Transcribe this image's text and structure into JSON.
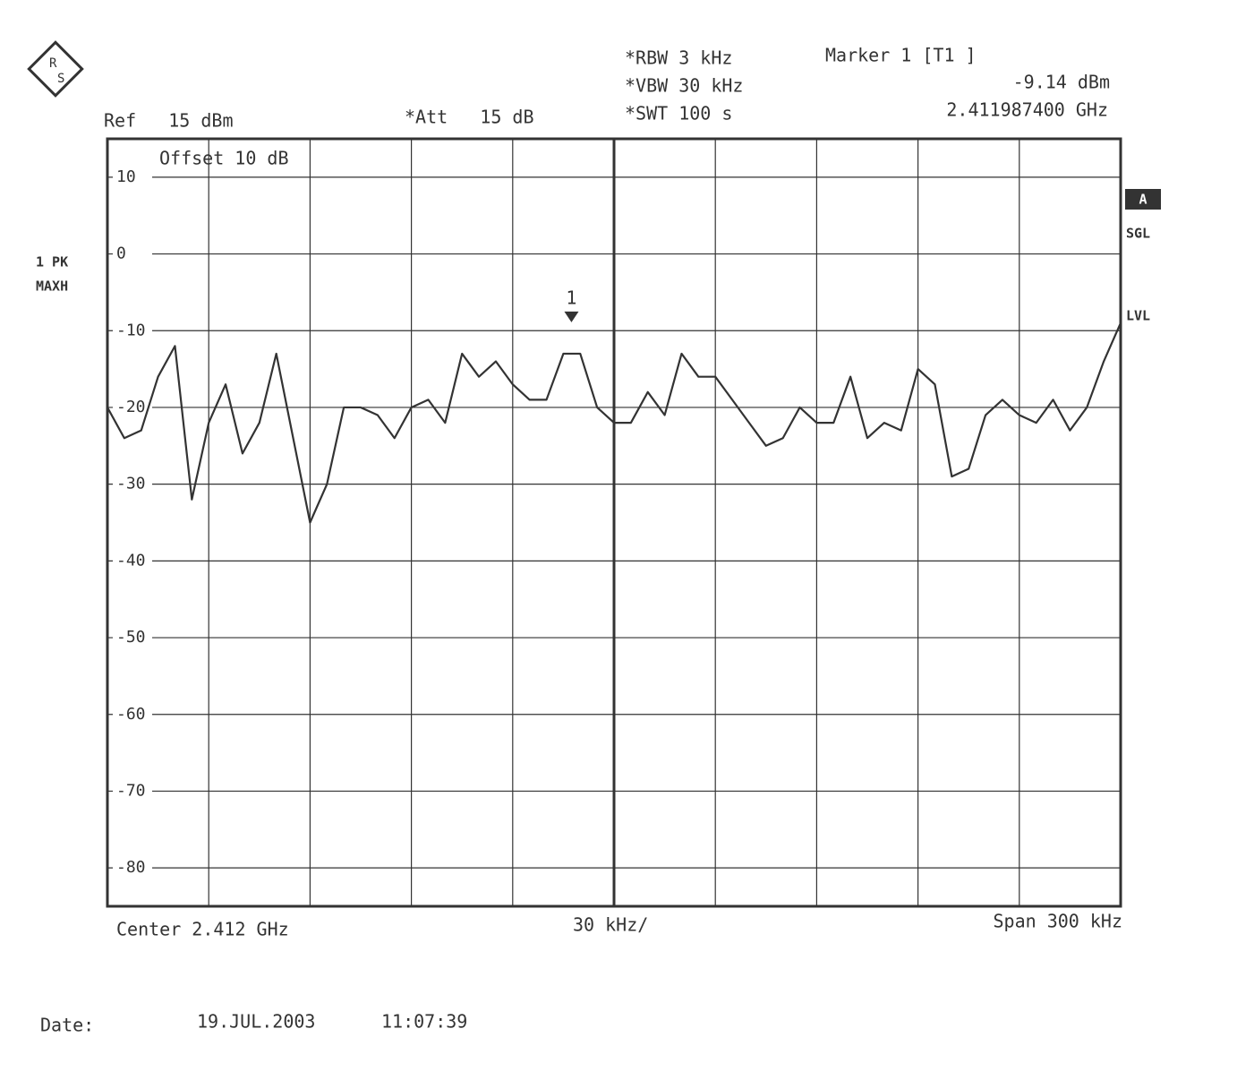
{
  "chart_data": {
    "type": "line",
    "logo": [
      "R",
      "S"
    ],
    "annotations": {
      "ref": "Ref   15 dBm",
      "att": "*Att   15 dB",
      "rbw": "*RBW 3 kHz",
      "vbw": "*VBW 30 kHz",
      "swt": "*SWT 100 s",
      "marker_title": "Marker 1 [T1 ]",
      "marker_level": "-9.14 dBm",
      "marker_freq": "2.411987400 GHz",
      "offset": "Offset   10 dB",
      "trace_mode_1": "1 PK",
      "trace_mode_2": "MAXH",
      "side_a": "A",
      "side_sgl": "SGL",
      "side_lvl": "LVL",
      "center": "Center 2.412 GHz",
      "per_div": "30 kHz/",
      "span": "Span 300 kHz",
      "date_label": "Date:",
      "date": "19.JUL.2003",
      "time": "11:07:39"
    },
    "marker": {
      "label": "1",
      "x": 2.4119874,
      "y": -9.14
    },
    "xlim": [
      2.41185,
      2.41215
    ],
    "ylim": [
      -85,
      15
    ],
    "yticks": [
      -80,
      -70,
      -60,
      -50,
      -40,
      -30,
      -20,
      -10,
      0,
      10
    ],
    "grid": true,
    "series": [
      {
        "color": "#333333",
        "x": [
          2.41185,
          2.411855,
          2.41186,
          2.411865,
          2.41187,
          2.411875,
          2.41188,
          2.411885,
          2.41189,
          2.411895,
          2.4119,
          2.411905,
          2.41191,
          2.411915,
          2.41192,
          2.411925,
          2.41193,
          2.411935,
          2.41194,
          2.411945,
          2.41195,
          2.411955,
          2.41196,
          2.411965,
          2.41197,
          2.411975,
          2.41198,
          2.411985,
          2.41199,
          2.411995,
          2.412,
          2.412005,
          2.41201,
          2.412015,
          2.41202,
          2.412025,
          2.41203,
          2.412035,
          2.41204,
          2.412045,
          2.41205,
          2.412055,
          2.41206,
          2.412065,
          2.41207,
          2.412075,
          2.41208,
          2.412085,
          2.41209,
          2.412095,
          2.4121,
          2.412105,
          2.41211,
          2.412115,
          2.41212,
          2.412125,
          2.41213,
          2.412135,
          2.41214,
          2.412145,
          2.41215
        ],
        "values": [
          -20,
          -24,
          -23,
          -16,
          -12,
          -32,
          -22,
          -17,
          -26,
          -22,
          -13,
          -24,
          -35,
          -30,
          -20,
          -20,
          -21,
          -24,
          -20,
          -19,
          -22,
          -13,
          -16,
          -14,
          -17,
          -19,
          -19,
          -13,
          -13,
          -20,
          -22,
          -22,
          -18,
          -21,
          -13,
          -16,
          -16,
          -19,
          -22,
          -25,
          -24,
          -20,
          -22,
          -22,
          -16,
          -24,
          -22,
          -23,
          -15,
          -17,
          -29,
          -28,
          -21,
          -19,
          -21,
          -22,
          -19,
          -23,
          -20,
          -14,
          -9
        ]
      }
    ]
  }
}
